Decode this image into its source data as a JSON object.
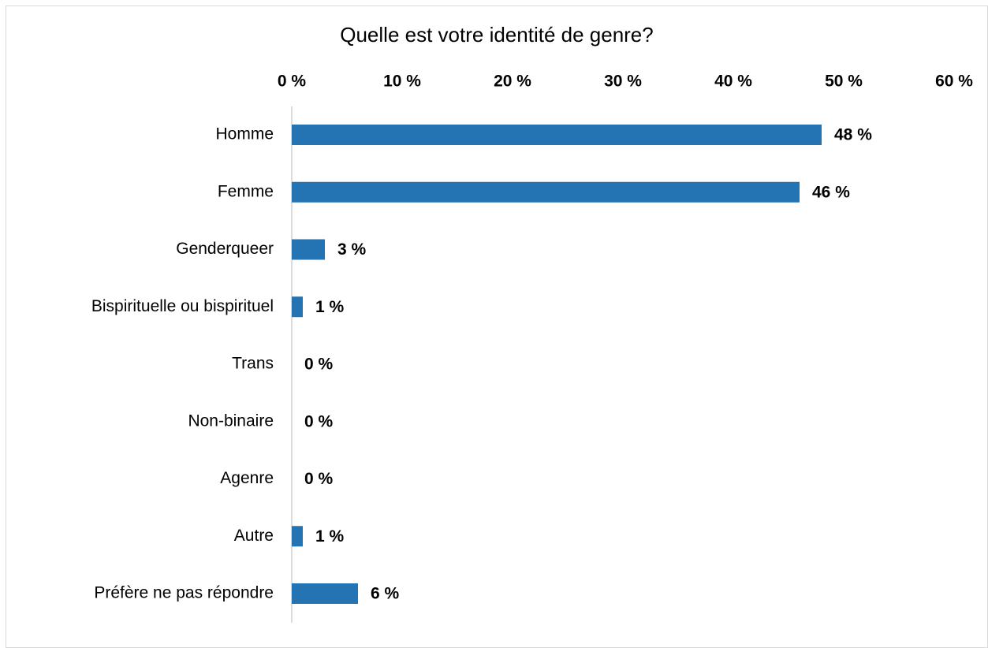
{
  "chart_data": {
    "type": "bar",
    "orientation": "horizontal",
    "title": "Quelle est votre identité de genre?",
    "categories": [
      "Homme",
      "Femme",
      "Genderqueer",
      "Bispirituelle ou bispirituel",
      "Trans",
      "Non-binaire",
      "Agenre",
      "Autre",
      "Préfère ne pas répondre"
    ],
    "values": [
      48,
      46,
      3,
      1,
      0,
      0,
      0,
      1,
      6
    ],
    "value_labels": [
      "48 %",
      "46 %",
      "3 %",
      "1 %",
      "0 %",
      "0 %",
      "0 %",
      "1 %",
      "6 %"
    ],
    "color": "#2474b4",
    "xlim": [
      0,
      60
    ],
    "xticks": [
      {
        "value": 0,
        "label": "0 %"
      },
      {
        "value": 10,
        "label": "10 %"
      },
      {
        "value": 20,
        "label": "20 %"
      },
      {
        "value": 30,
        "label": "30 %"
      },
      {
        "value": 40,
        "label": "40 %"
      },
      {
        "value": 50,
        "label": "50 %"
      },
      {
        "value": 60,
        "label": "60 %"
      }
    ],
    "grid": false
  }
}
